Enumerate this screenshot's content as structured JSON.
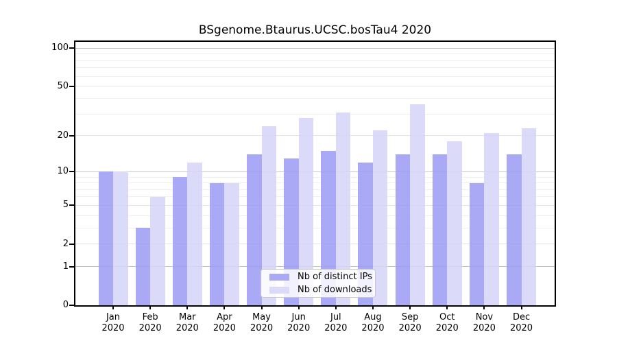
{
  "chart_data": {
    "type": "bar",
    "title": "BSgenome.Btaurus.UCSC.bosTau4 2020",
    "categories": [
      "Jan 2020",
      "Feb 2020",
      "Mar 2020",
      "Apr 2020",
      "May 2020",
      "Jun 2020",
      "Jul 2020",
      "Aug 2020",
      "Sep 2020",
      "Oct 2020",
      "Nov 2020",
      "Dec 2020"
    ],
    "series": [
      {
        "name": "Nb of distinct IPs",
        "color": "#a9a9f6",
        "bar_rgba": "rgba(154,154,245,0.85)",
        "values": [
          10,
          3,
          9,
          8,
          14,
          13,
          15,
          12,
          14,
          14,
          8,
          14
        ]
      },
      {
        "name": "Nb of downloads",
        "color": "#dbdbf9",
        "bar_rgba": "rgba(213,213,248,0.85)",
        "values": [
          10,
          6,
          12,
          8,
          24,
          28,
          31,
          22,
          36,
          18,
          21,
          23
        ]
      }
    ],
    "y_scale": "log1p",
    "y_ticks": [
      0,
      1,
      2,
      5,
      10,
      20,
      50,
      100
    ],
    "ylim": [
      0,
      110
    ],
    "xlabel": "",
    "ylabel": "",
    "grid": {
      "major": {
        "values": [
          1,
          10,
          100
        ],
        "color": "#c4c4c4"
      },
      "mid": {
        "values": [
          2,
          5,
          20,
          50
        ],
        "color": "#e3e3e3"
      },
      "minor": {
        "values": [
          3,
          4,
          6,
          7,
          8,
          9,
          30,
          40,
          60,
          70,
          80,
          90
        ],
        "color": "#efefef"
      }
    },
    "legend_position": "inside-bottom-center",
    "axis_color": "#000000",
    "background_color": "#ffffff"
  }
}
